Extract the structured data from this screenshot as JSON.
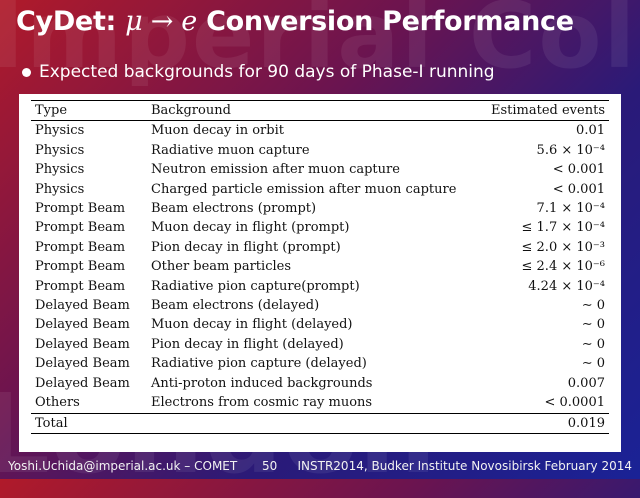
{
  "watermark": {
    "line1": "Imperial College",
    "line2": "London"
  },
  "slide": {
    "title_prefix": "CyDet: ",
    "title_mu": "μ",
    "title_arrow": " → ",
    "title_e": "e",
    "title_suffix": " Conversion Performance",
    "bullet": "Expected backgrounds for 90 days of Phase-I running"
  },
  "table": {
    "headers": [
      "Type",
      "Background",
      "Estimated events"
    ],
    "rows": [
      [
        "Physics",
        "Muon decay in orbit",
        "0.01"
      ],
      [
        "Physics",
        "Radiative muon capture",
        "5.6 × 10⁻⁴"
      ],
      [
        "Physics",
        "Neutron emission after muon capture",
        "< 0.001"
      ],
      [
        "Physics",
        "Charged particle emission after muon capture",
        "< 0.001"
      ],
      [
        "Prompt Beam",
        "Beam electrons (prompt)",
        "7.1 × 10⁻⁴"
      ],
      [
        "Prompt Beam",
        "Muon decay in flight (prompt)",
        "≤ 1.7 × 10⁻⁴"
      ],
      [
        "Prompt Beam",
        "Pion decay in flight (prompt)",
        "≤ 2.0 × 10⁻³"
      ],
      [
        "Prompt Beam",
        "Other beam particles",
        "≤ 2.4 × 10⁻⁶"
      ],
      [
        "Prompt Beam",
        "Radiative pion capture(prompt)",
        "4.24 × 10⁻⁴"
      ],
      [
        "Delayed Beam",
        "Beam electrons (delayed)",
        "∼ 0"
      ],
      [
        "Delayed Beam",
        "Muon decay in flight (delayed)",
        "∼ 0"
      ],
      [
        "Delayed Beam",
        "Pion decay in flight (delayed)",
        "∼ 0"
      ],
      [
        "Delayed Beam",
        "Radiative pion capture (delayed)",
        "∼ 0"
      ],
      [
        "Delayed Beam",
        "Anti-proton induced backgrounds",
        "0.007"
      ],
      [
        "Others",
        "Electrons from cosmic ray muons",
        "< 0.0001"
      ]
    ],
    "total": {
      "label": "Total",
      "value": "0.019"
    }
  },
  "footer": {
    "left": "Yoshi.Uchida@imperial.ac.uk – COMET",
    "page": "50",
    "right": "INSTR2014, Budker Institute Novosibirsk February 2014"
  },
  "colors": {
    "bg_red": "#b01a2a",
    "bg_blue": "#1a2296",
    "panel": "#ffffff",
    "text": "#ffffff"
  }
}
